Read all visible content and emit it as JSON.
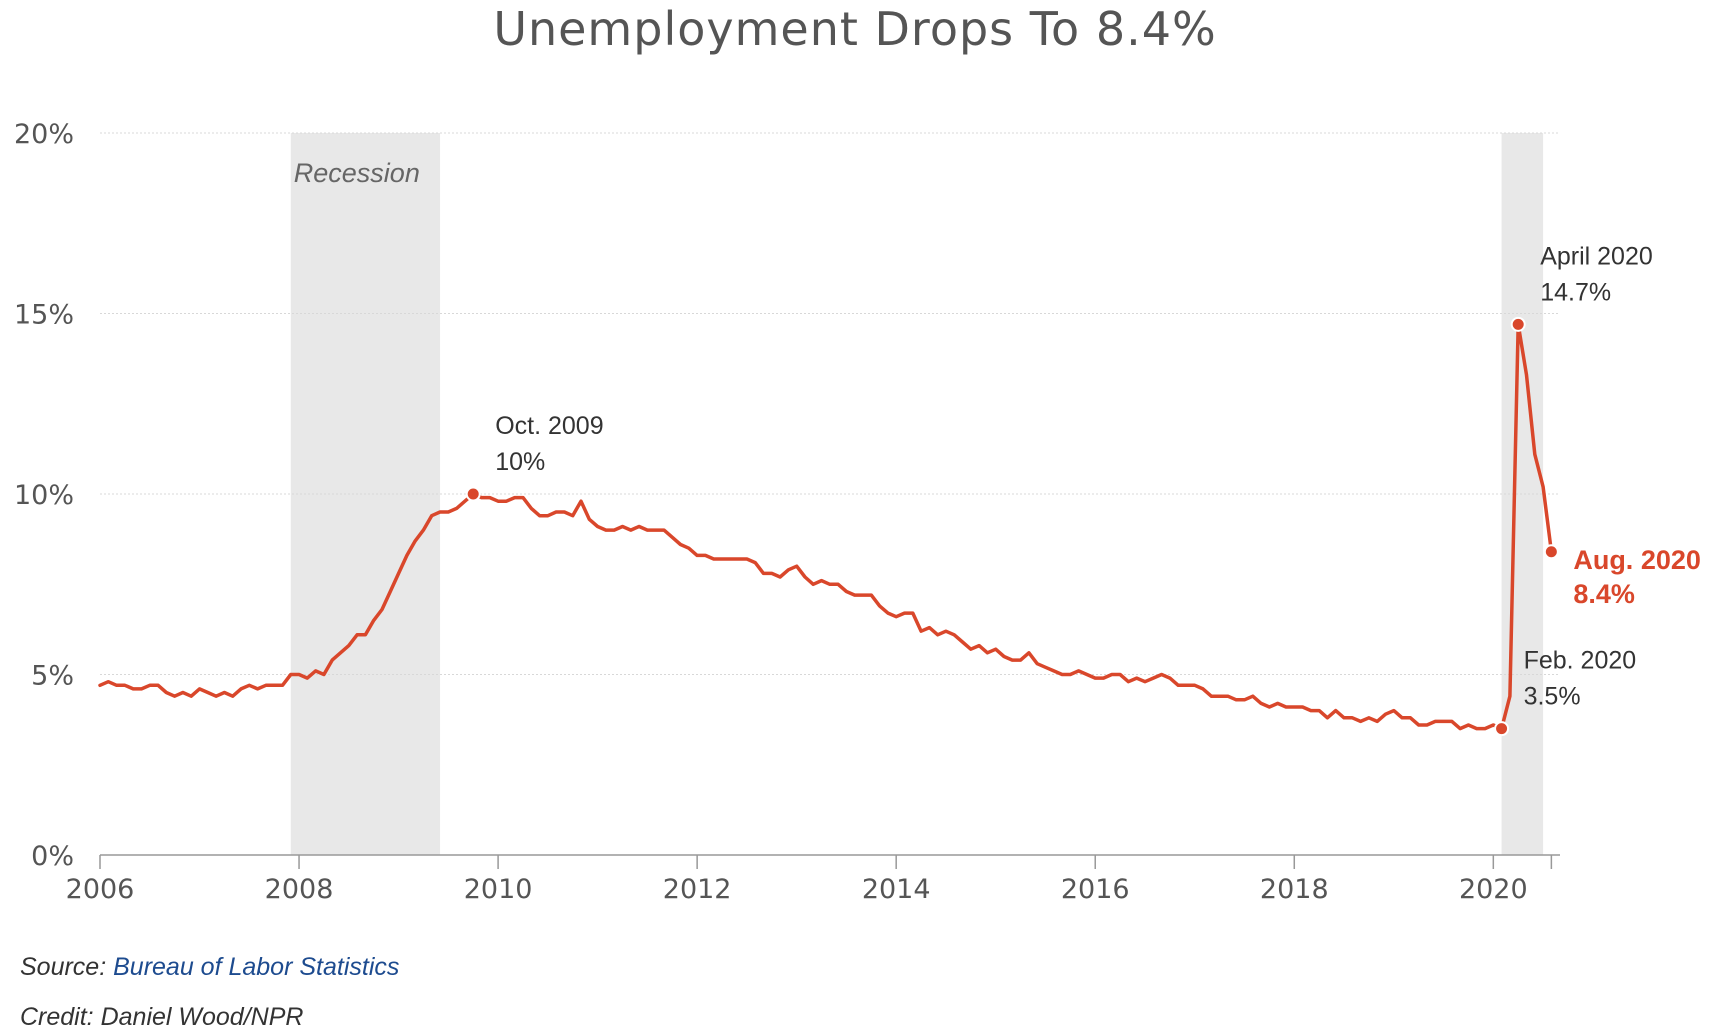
{
  "chart_data": {
    "type": "line",
    "title": "Unemployment Drops To 8.4%",
    "xlabel": "",
    "ylabel": "",
    "xlim": [
      2006,
      2020.67
    ],
    "ylim": [
      0,
      20
    ],
    "x_ticks": [
      {
        "value": 2006,
        "label": "2006"
      },
      {
        "value": 2008,
        "label": "2008"
      },
      {
        "value": 2010,
        "label": "2010"
      },
      {
        "value": 2012,
        "label": "2012"
      },
      {
        "value": 2014,
        "label": "2014"
      },
      {
        "value": 2016,
        "label": "2016"
      },
      {
        "value": 2018,
        "label": "2018"
      },
      {
        "value": 2020,
        "label": "2020"
      }
    ],
    "y_ticks": [
      {
        "value": 0,
        "label": "0%"
      },
      {
        "value": 5,
        "label": "5%"
      },
      {
        "value": 10,
        "label": "10%"
      },
      {
        "value": 15,
        "label": "15%"
      },
      {
        "value": 20,
        "label": "20%"
      }
    ],
    "grid": true,
    "accent_color": "#d9472b",
    "shade_color": "#e8e8e8",
    "recessions": [
      {
        "start": 2007.917,
        "end": 2009.417,
        "label": "Recession"
      },
      {
        "start": 2020.083,
        "end": 2020.5,
        "label": ""
      }
    ],
    "series": [
      {
        "name": "",
        "color": "#d9472b",
        "start_year": 2006,
        "start_month": 1,
        "values": [
          4.7,
          4.8,
          4.7,
          4.7,
          4.6,
          4.6,
          4.7,
          4.7,
          4.5,
          4.4,
          4.5,
          4.4,
          4.6,
          4.5,
          4.4,
          4.5,
          4.4,
          4.6,
          4.7,
          4.6,
          4.7,
          4.7,
          4.7,
          5.0,
          5.0,
          4.9,
          5.1,
          5.0,
          5.4,
          5.6,
          5.8,
          6.1,
          6.1,
          6.5,
          6.8,
          7.3,
          7.8,
          8.3,
          8.7,
          9.0,
          9.4,
          9.5,
          9.5,
          9.6,
          9.8,
          10.0,
          9.9,
          9.9,
          9.8,
          9.8,
          9.9,
          9.9,
          9.6,
          9.4,
          9.4,
          9.5,
          9.5,
          9.4,
          9.8,
          9.3,
          9.1,
          9.0,
          9.0,
          9.1,
          9.0,
          9.1,
          9.0,
          9.0,
          9.0,
          8.8,
          8.6,
          8.5,
          8.3,
          8.3,
          8.2,
          8.2,
          8.2,
          8.2,
          8.2,
          8.1,
          7.8,
          7.8,
          7.7,
          7.9,
          8.0,
          7.7,
          7.5,
          7.6,
          7.5,
          7.5,
          7.3,
          7.2,
          7.2,
          7.2,
          6.9,
          6.7,
          6.6,
          6.7,
          6.7,
          6.2,
          6.3,
          6.1,
          6.2,
          6.1,
          5.9,
          5.7,
          5.8,
          5.6,
          5.7,
          5.5,
          5.4,
          5.4,
          5.6,
          5.3,
          5.2,
          5.1,
          5.0,
          5.0,
          5.1,
          5.0,
          4.9,
          4.9,
          5.0,
          5.0,
          4.8,
          4.9,
          4.8,
          4.9,
          5.0,
          4.9,
          4.7,
          4.7,
          4.7,
          4.6,
          4.4,
          4.4,
          4.4,
          4.3,
          4.3,
          4.4,
          4.2,
          4.1,
          4.2,
          4.1,
          4.1,
          4.1,
          4.0,
          4.0,
          3.8,
          4.0,
          3.8,
          3.8,
          3.7,
          3.8,
          3.7,
          3.9,
          4.0,
          3.8,
          3.8,
          3.6,
          3.6,
          3.7,
          3.7,
          3.7,
          3.5,
          3.6,
          3.5,
          3.5,
          3.6,
          3.5,
          4.4,
          14.7,
          13.3,
          11.1,
          10.2,
          8.4
        ]
      }
    ],
    "annotations": [
      {
        "x": 2009.75,
        "y": 10.0,
        "line1": "Oct. 2009",
        "line2": "10%",
        "highlight": false,
        "anchor": "above-right"
      },
      {
        "x": 2020.083,
        "y": 3.5,
        "line1": "Feb. 2020",
        "line2": "3.5%",
        "highlight": false,
        "anchor": "above-right"
      },
      {
        "x": 2020.25,
        "y": 14.7,
        "line1": "April 2020",
        "line2": "14.7%",
        "highlight": false,
        "anchor": "above-right"
      },
      {
        "x": 2020.583,
        "y": 8.4,
        "line1": "Aug. 2020",
        "line2": "8.4%",
        "highlight": true,
        "anchor": "right"
      }
    ]
  },
  "footer": {
    "source_prefix": "Source: ",
    "source_link": "Bureau of Labor Statistics",
    "credit": "Credit: Daniel Wood/NPR"
  }
}
